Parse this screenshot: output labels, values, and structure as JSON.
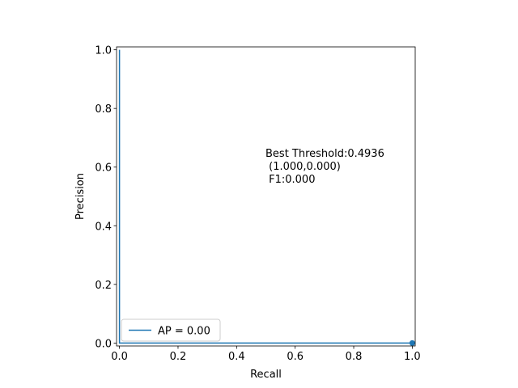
{
  "chart_data": {
    "type": "line",
    "title": "",
    "xlabel": "Recall",
    "ylabel": "Precision",
    "xlim": [
      -0.01,
      1.01
    ],
    "ylim": [
      -0.01,
      1.01
    ],
    "grid": false,
    "xticks": [
      0.0,
      0.2,
      0.4,
      0.6,
      0.8,
      1.0
    ],
    "yticks": [
      0.0,
      0.2,
      0.4,
      0.6,
      0.8,
      1.0
    ],
    "xtick_labels": [
      "0.0",
      "0.2",
      "0.4",
      "0.6",
      "0.8",
      "1.0"
    ],
    "ytick_labels": [
      "0.0",
      "0.2",
      "0.4",
      "0.6",
      "0.8",
      "1.0"
    ],
    "series": [
      {
        "name": "AP = 0.00",
        "color": "#1f77b4",
        "x": [
          0.0,
          0.0,
          1.0
        ],
        "y": [
          1.0,
          0.0,
          0.0
        ]
      }
    ],
    "best_point": {
      "x": 1.0,
      "y": 0.0,
      "color": "#1f77b4"
    },
    "annotation": {
      "x": 0.5,
      "y": 0.5,
      "lines": [
        "Best Threshold:0.4936",
        " (1.000,0.000)",
        " F1:0.000"
      ]
    },
    "legend": {
      "placement": "lower-left",
      "label": "AP = 0.00"
    }
  }
}
